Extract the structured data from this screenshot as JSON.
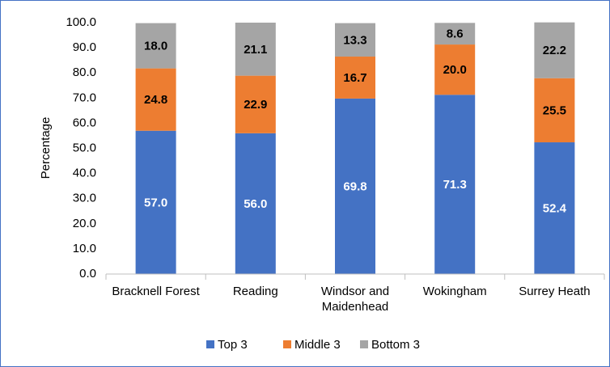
{
  "chart_data": {
    "type": "stacked_bar",
    "y_axis_label": "Percentage",
    "categories": [
      "Bracknell Forest",
      "Reading",
      "Windsor and Maidenhead",
      "Wokingham",
      "Surrey Heath"
    ],
    "series": [
      {
        "name": "Top 3",
        "color": "#4472c4",
        "values": [
          57,
          56,
          69.8,
          71.3,
          52.4
        ],
        "value_labels": [
          "57.0",
          "56.0",
          "69.8",
          "71.3",
          "52.4"
        ]
      },
      {
        "name": "Middle 3",
        "color": "#ed7d31",
        "values": [
          24.8,
          22.9,
          16.7,
          20,
          25.5
        ],
        "value_labels": [
          "24.8",
          "22.9",
          "16.7",
          "20.0",
          "25.5"
        ]
      },
      {
        "name": "Bottom 3",
        "color": "#a5a5a5",
        "values": [
          18,
          21.1,
          13.3,
          8.6,
          22.2
        ],
        "value_labels": [
          "18.0",
          "21.1",
          "13.3",
          "8.6",
          "22.2"
        ]
      }
    ],
    "ylim": [
      0,
      100
    ],
    "yticks": [
      {
        "value": 0,
        "label": "0.0"
      },
      {
        "value": 10,
        "label": "10.0"
      },
      {
        "value": 20,
        "label": "20.0"
      },
      {
        "value": 30,
        "label": "30.0"
      },
      {
        "value": 40,
        "label": "40.0"
      },
      {
        "value": 50,
        "label": "50.0"
      },
      {
        "value": 60,
        "label": "60.0"
      },
      {
        "value": 70,
        "label": "70.0"
      },
      {
        "value": 80,
        "label": "80.0"
      },
      {
        "value": 90,
        "label": "90.0"
      },
      {
        "value": 100,
        "label": "100.0"
      }
    ],
    "legend": "bottom",
    "grid": false
  }
}
